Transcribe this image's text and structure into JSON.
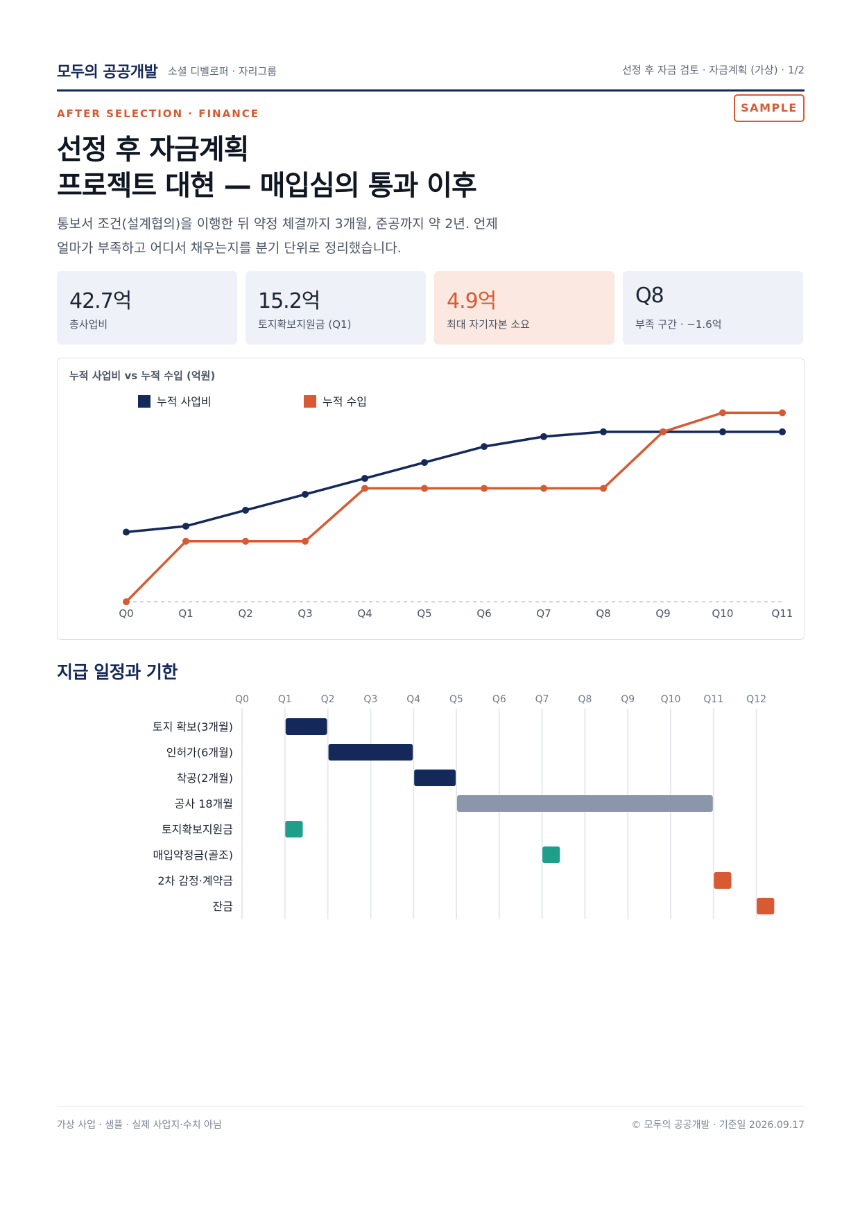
{
  "header": {
    "brand": "모두의 공공개발",
    "brand_sub": "소셜 디벨로퍼 · 자리그룹",
    "page_ref": "선정 후 자금 검토 · 자금계획 (가상) · 1/2"
  },
  "eyebrow": "AFTER SELECTION · FINANCE",
  "badge": "SAMPLE",
  "title": {
    "line1": "선정 후 자금계획",
    "line2": "프로젝트 대현 — 매입심의 통과 이후"
  },
  "lede": {
    "line1": "통보서 조건(설계협의)을 이행한 뒤 약정 체결까지 3개월, 준공까지 약 2년. 언제",
    "line2": "얼마가 부족하고 어디서 채우는지를 분기 단위로 정리했습니다."
  },
  "kpis": [
    {
      "value": "42.7억",
      "label": "총사업비"
    },
    {
      "value": "15.2억",
      "label": "토지확보지원금 (Q1)"
    },
    {
      "value": "4.9억",
      "label": "최대 자기자본 소요"
    },
    {
      "value": "Q8",
      "label": "부족 구간 · −1.6억"
    }
  ],
  "colors": {
    "navy": "#14285a",
    "orange": "#d85a32",
    "teal": "#1f9e8a",
    "gray": "#8c96aa"
  },
  "chart_data": {
    "type": "line",
    "title": "누적 사업비 vs 누적 수입 (억원)",
    "categories": [
      "Q0",
      "Q1",
      "Q2",
      "Q3",
      "Q4",
      "Q5",
      "Q6",
      "Q7",
      "Q8",
      "Q9",
      "Q10",
      "Q11"
    ],
    "ylim": [
      0,
      50
    ],
    "legend_position": "top-left",
    "series": [
      {
        "name": "누적 사업비",
        "color": "#14285a",
        "values": [
          17.5,
          19.0,
          23.0,
          27.0,
          31.0,
          35.0,
          39.0,
          41.5,
          42.7,
          42.7,
          42.7,
          42.7
        ]
      },
      {
        "name": "누적 수입",
        "color": "#d85a32",
        "values": [
          0.0,
          15.2,
          15.2,
          15.2,
          28.5,
          28.5,
          28.5,
          28.5,
          28.5,
          42.7,
          47.5,
          47.5
        ]
      }
    ]
  },
  "gantt": {
    "title": "지급 일정과 기한",
    "ticks": [
      "Q0",
      "Q1",
      "Q2",
      "Q3",
      "Q4",
      "Q5",
      "Q6",
      "Q7",
      "Q8",
      "Q9",
      "Q10",
      "Q11",
      "Q12"
    ],
    "tasks": [
      {
        "label": "토지 확보(3개월)",
        "start": 1,
        "end": 2,
        "kind": "bar",
        "color": "#14285a"
      },
      {
        "label": "인허가(6개월)",
        "start": 2,
        "end": 4,
        "kind": "bar",
        "color": "#14285a"
      },
      {
        "label": "착공(2개월)",
        "start": 4,
        "end": 5,
        "kind": "bar",
        "color": "#14285a"
      },
      {
        "label": "공사 18개월",
        "start": 5,
        "end": 11,
        "kind": "bar",
        "color": "#8c96aa"
      },
      {
        "label": "토지확보지원금",
        "start": 1,
        "end": 1.4,
        "kind": "milestone",
        "color": "#1f9e8a"
      },
      {
        "label": "매입약정금(골조)",
        "start": 7,
        "end": 7.4,
        "kind": "milestone",
        "color": "#1f9e8a"
      },
      {
        "label": "2차 감정·계약금",
        "start": 11,
        "end": 11.4,
        "kind": "milestone",
        "color": "#d85a32"
      },
      {
        "label": "잔금",
        "start": 12,
        "end": 12.4,
        "kind": "milestone",
        "color": "#d85a32"
      }
    ]
  },
  "footer": {
    "left": "가상 사업 · 샘플 · 실제 사업지·수치 아님",
    "right": "© 모두의 공공개발 · 기준일 2026.09.17"
  }
}
